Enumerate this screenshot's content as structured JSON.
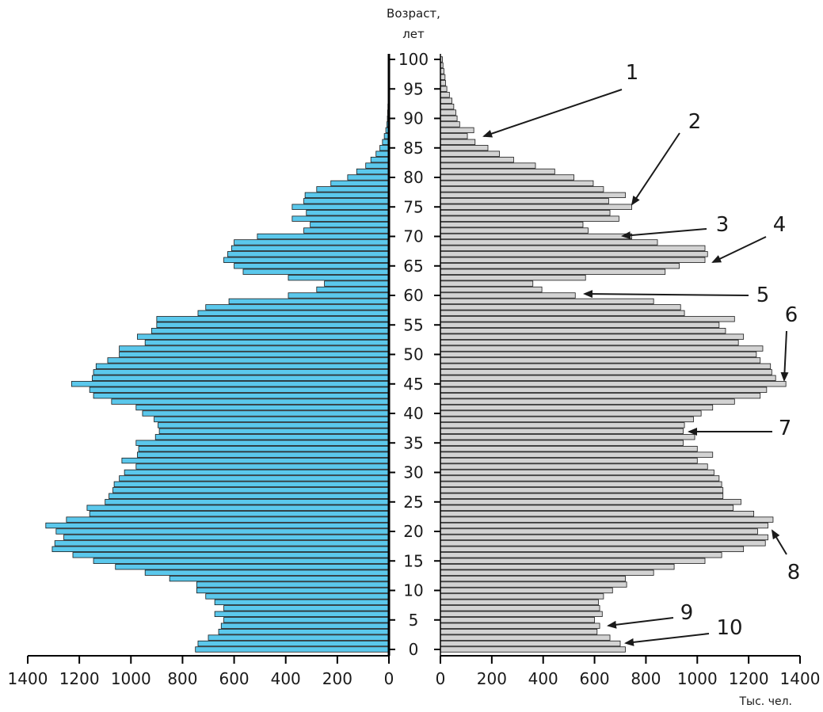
{
  "chart_data": {
    "type": "bar",
    "orientation": "horizontal-pyramid",
    "ylabel_line1": "Возраст,",
    "ylabel_line2": "лет",
    "xunit": "Тыс. чел.",
    "xlim_left": [
      0,
      1400
    ],
    "xlim_right": [
      0,
      1400
    ],
    "x_ticks": [
      "0",
      "200",
      "400",
      "600",
      "800",
      "1000",
      "1200",
      "1400"
    ],
    "x_tick_values": [
      0,
      200,
      400,
      600,
      800,
      1000,
      1200,
      1400
    ],
    "age_ticks": [
      "0",
      "5",
      "10",
      "15",
      "20",
      "25",
      "30",
      "35",
      "40",
      "45",
      "50",
      "55",
      "60",
      "65",
      "70",
      "75",
      "80",
      "85",
      "90",
      "95",
      "100"
    ],
    "age_tick_values": [
      0,
      5,
      10,
      15,
      20,
      25,
      30,
      35,
      40,
      45,
      50,
      55,
      60,
      65,
      70,
      75,
      80,
      85,
      90,
      95,
      100
    ],
    "ages": [
      0,
      1,
      2,
      3,
      4,
      5,
      6,
      7,
      8,
      9,
      10,
      11,
      12,
      13,
      14,
      15,
      16,
      17,
      18,
      19,
      20,
      21,
      22,
      23,
      24,
      25,
      26,
      27,
      28,
      29,
      30,
      31,
      32,
      33,
      34,
      35,
      36,
      37,
      38,
      39,
      40,
      41,
      42,
      43,
      44,
      45,
      46,
      47,
      48,
      49,
      50,
      51,
      52,
      53,
      54,
      55,
      56,
      57,
      58,
      59,
      60,
      61,
      62,
      63,
      64,
      65,
      66,
      67,
      68,
      69,
      70,
      71,
      72,
      73,
      74,
      75,
      76,
      77,
      78,
      79,
      80,
      81,
      82,
      83,
      84,
      85,
      86,
      87,
      88,
      89,
      90,
      91,
      92,
      93,
      94,
      95,
      96,
      97,
      98,
      99,
      100
    ],
    "series": [
      {
        "side": "left",
        "color": "#5bc8ec",
        "values": [
          750,
          740,
          700,
          660,
          650,
          640,
          675,
          640,
          675,
          710,
          745,
          745,
          850,
          945,
          1060,
          1145,
          1225,
          1305,
          1295,
          1260,
          1290,
          1330,
          1250,
          1160,
          1170,
          1100,
          1085,
          1070,
          1065,
          1045,
          1025,
          980,
          1035,
          975,
          970,
          980,
          905,
          890,
          895,
          910,
          955,
          980,
          1075,
          1145,
          1160,
          1230,
          1150,
          1145,
          1135,
          1090,
          1045,
          1045,
          945,
          975,
          920,
          900,
          900,
          740,
          710,
          620,
          390,
          280,
          250,
          390,
          565,
          600,
          640,
          625,
          610,
          600,
          510,
          330,
          305,
          375,
          320,
          375,
          330,
          325,
          280,
          225,
          160,
          125,
          90,
          70,
          50,
          35,
          25,
          18,
          12,
          8,
          6,
          5,
          4,
          3,
          2,
          2,
          2,
          1,
          1,
          1,
          1
        ]
      },
      {
        "side": "right",
        "color": "#d3d3d3",
        "values": [
          720,
          700,
          660,
          610,
          620,
          600,
          630,
          620,
          615,
          635,
          670,
          725,
          720,
          830,
          910,
          1030,
          1095,
          1180,
          1265,
          1275,
          1235,
          1275,
          1295,
          1220,
          1140,
          1170,
          1100,
          1100,
          1095,
          1085,
          1065,
          1040,
          1000,
          1060,
          1000,
          945,
          990,
          945,
          950,
          985,
          1015,
          1060,
          1145,
          1245,
          1270,
          1345,
          1305,
          1290,
          1285,
          1245,
          1230,
          1255,
          1160,
          1180,
          1110,
          1085,
          1145,
          950,
          935,
          830,
          525,
          395,
          360,
          565,
          875,
          930,
          1030,
          1040,
          1030,
          845,
          745,
          575,
          555,
          695,
          660,
          745,
          655,
          720,
          635,
          595,
          520,
          445,
          370,
          285,
          230,
          185,
          135,
          105,
          130,
          75,
          65,
          60,
          52,
          45,
          35,
          25,
          20,
          18,
          14,
          10,
          8
        ]
      }
    ],
    "callouts": [
      "1",
      "2",
      "3",
      "4",
      "5",
      "6",
      "7",
      "8",
      "9",
      "10"
    ]
  }
}
